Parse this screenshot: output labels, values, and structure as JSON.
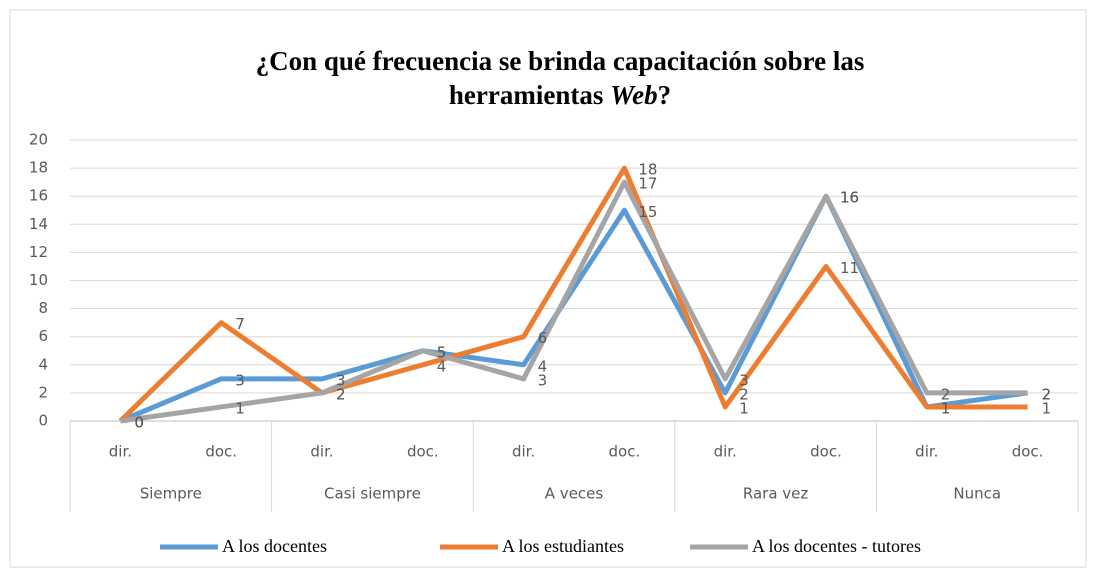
{
  "chart_data": {
    "type": "line",
    "title": {
      "line1": "¿Con qué frecuencia se brinda capacitación sobre las",
      "line2": "herramientas",
      "emphasis": "Web",
      "end": "?"
    },
    "categories": [
      "dir.",
      "doc.",
      "dir.",
      "doc.",
      "dir.",
      "doc.",
      "dir.",
      "doc.",
      "dir.",
      "doc."
    ],
    "groups": [
      "Siempre",
      "Casi siempre",
      "A veces",
      "Rara vez",
      "Nunca"
    ],
    "series": [
      {
        "name": "A los docentes",
        "color": "#5b9bd5",
        "values": [
          0,
          3,
          3,
          5,
          4,
          15,
          2,
          16,
          1,
          2
        ]
      },
      {
        "name": "A los estudiantes",
        "color": "#ed7d31",
        "values": [
          0,
          7,
          2,
          4,
          6,
          18,
          1,
          11,
          1,
          1
        ]
      },
      {
        "name": "A los docentes - tutores",
        "color": "#a5a5a5",
        "values": [
          0,
          1,
          2,
          5,
          3,
          17,
          3,
          16,
          2,
          2
        ]
      }
    ],
    "ylim": [
      0,
      20
    ],
    "yticks": [
      0,
      2,
      4,
      6,
      8,
      10,
      12,
      14,
      16,
      18,
      20
    ],
    "grid": true,
    "legend": "bottom"
  }
}
